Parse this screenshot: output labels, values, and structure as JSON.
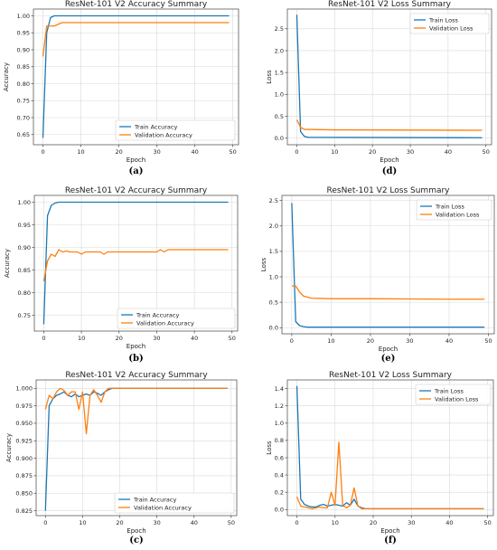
{
  "colors": {
    "train": "#1f77b4",
    "validation": "#ff7f0e",
    "grid": "#d9d9d9",
    "frame": "#444444"
  },
  "chart_data": [
    {
      "type": "line",
      "caption": "(a)",
      "title": "ResNet-101 V2 Accuracy Summary",
      "xlabel": "Epoch",
      "ylabel": "Accuracy",
      "xlim": [
        -2.5,
        51.5
      ],
      "ylim": [
        0.62,
        1.02
      ],
      "xticks": [
        0,
        10,
        20,
        30,
        40,
        50
      ],
      "xtick_labels": [
        "0",
        "10",
        "20",
        "30",
        "40",
        "50"
      ],
      "yticks": [
        0.65,
        0.7,
        0.75,
        0.8,
        0.85,
        0.9,
        0.95,
        1.0
      ],
      "ytick_labels": [
        "0.65",
        "0.70",
        "0.75",
        "0.80",
        "0.85",
        "0.90",
        "0.95",
        "1.00"
      ],
      "grid": true,
      "legend": "lower-right",
      "series": [
        {
          "name": "Train Accuracy",
          "color": "#1f77b4",
          "x": [
            0,
            1,
            2,
            3,
            4,
            49
          ],
          "y": [
            0.64,
            0.95,
            0.995,
            1.0,
            1.0,
            1.0
          ]
        },
        {
          "name": "Validation Accuracy",
          "color": "#ff7f0e",
          "x": [
            0,
            1,
            2,
            3,
            4,
            5,
            49
          ],
          "y": [
            0.88,
            0.97,
            0.97,
            0.97,
            0.975,
            0.98,
            0.98
          ]
        }
      ]
    },
    {
      "type": "line",
      "caption": "(d)",
      "title": "ResNet-101 V2 Loss Summary",
      "xlabel": "Epoch",
      "ylabel": "Loss",
      "xlim": [
        -2.5,
        51.5
      ],
      "ylim": [
        -0.15,
        2.95
      ],
      "xticks": [
        0,
        10,
        20,
        30,
        40,
        50
      ],
      "xtick_labels": [
        "0",
        "10",
        "20",
        "30",
        "40",
        "50"
      ],
      "yticks": [
        0.0,
        0.5,
        1.0,
        1.5,
        2.0,
        2.5
      ],
      "ytick_labels": [
        "0.0",
        "0.5",
        "1.0",
        "1.5",
        "2.0",
        "2.5"
      ],
      "grid": true,
      "legend": "upper-right",
      "series": [
        {
          "name": "Train Loss",
          "color": "#1f77b4",
          "x": [
            0,
            1,
            2,
            3,
            49
          ],
          "y": [
            2.82,
            0.15,
            0.04,
            0.02,
            0.01
          ]
        },
        {
          "name": "Validation Loss",
          "color": "#ff7f0e",
          "x": [
            0,
            1,
            2,
            3,
            10,
            49
          ],
          "y": [
            0.42,
            0.25,
            0.2,
            0.2,
            0.19,
            0.18
          ]
        }
      ]
    },
    {
      "type": "line",
      "caption": "(b)",
      "title": "ResNet-101 V2 Accuracy Summary",
      "xlabel": "Epoch",
      "ylabel": "Accuracy",
      "xlim": [
        -2.5,
        51.5
      ],
      "ylim": [
        0.715,
        1.015
      ],
      "xticks": [
        0,
        10,
        20,
        30,
        40,
        50
      ],
      "xtick_labels": [
        "0",
        "10",
        "20",
        "30",
        "40",
        "50"
      ],
      "yticks": [
        0.75,
        0.8,
        0.85,
        0.9,
        0.95,
        1.0
      ],
      "ytick_labels": [
        "0.75",
        "0.80",
        "0.85",
        "0.90",
        "0.95",
        "1.00"
      ],
      "grid": true,
      "legend": "lower-right",
      "series": [
        {
          "name": "Train Accuracy",
          "color": "#1f77b4",
          "x": [
            0,
            1,
            2,
            3,
            4,
            5,
            49
          ],
          "y": [
            0.73,
            0.97,
            0.993,
            0.998,
            1.0,
            1.0,
            1.0
          ]
        },
        {
          "name": "Validation Accuracy",
          "color": "#ff7f0e",
          "x": [
            0,
            1,
            2,
            3,
            4,
            5,
            6,
            7,
            8,
            9,
            10,
            11,
            12,
            13,
            14,
            15,
            16,
            17,
            18,
            20,
            25,
            30,
            31,
            32,
            33,
            34,
            35,
            40,
            45,
            49
          ],
          "y": [
            0.825,
            0.87,
            0.885,
            0.88,
            0.895,
            0.89,
            0.892,
            0.89,
            0.89,
            0.89,
            0.885,
            0.89,
            0.89,
            0.89,
            0.89,
            0.89,
            0.885,
            0.89,
            0.89,
            0.89,
            0.89,
            0.89,
            0.895,
            0.89,
            0.895,
            0.895,
            0.895,
            0.895,
            0.895,
            0.895
          ]
        }
      ]
    },
    {
      "type": "line",
      "caption": "(e)",
      "title": "ResNet-101 V2 Loss Summary",
      "xlabel": "Epoch",
      "ylabel": "Loss",
      "xlim": [
        -2.5,
        51.5
      ],
      "ylim": [
        -0.12,
        2.6
      ],
      "xticks": [
        0,
        10,
        20,
        30,
        40,
        50
      ],
      "xtick_labels": [
        "0",
        "10",
        "20",
        "30",
        "40",
        "50"
      ],
      "yticks": [
        0.0,
        0.5,
        1.0,
        1.5,
        2.0,
        2.5
      ],
      "ytick_labels": [
        "0.0",
        "0.5",
        "1.0",
        "1.5",
        "2.0",
        "2.5"
      ],
      "grid": true,
      "legend": "upper-right",
      "series": [
        {
          "name": "Train Loss",
          "color": "#1f77b4",
          "x": [
            0,
            1,
            2,
            3,
            4,
            49
          ],
          "y": [
            2.45,
            0.12,
            0.04,
            0.02,
            0.01,
            0.01
          ]
        },
        {
          "name": "Validation Loss",
          "color": "#ff7f0e",
          "x": [
            0,
            1,
            2,
            3,
            4,
            5,
            10,
            20,
            30,
            40,
            49
          ],
          "y": [
            0.82,
            0.82,
            0.7,
            0.62,
            0.6,
            0.58,
            0.57,
            0.57,
            0.565,
            0.56,
            0.56
          ]
        }
      ]
    },
    {
      "type": "line",
      "caption": "(c)",
      "title": "ResNet-101 V2 Accuracy Summary",
      "xlabel": "Epoch",
      "ylabel": "Accuracy",
      "xlim": [
        -2.5,
        51.5
      ],
      "ylim": [
        0.818,
        1.012
      ],
      "xticks": [
        0,
        10,
        20,
        30,
        40,
        50
      ],
      "xtick_labels": [
        "0",
        "10",
        "20",
        "30",
        "40",
        "50"
      ],
      "yticks": [
        0.825,
        0.85,
        0.875,
        0.9,
        0.925,
        0.95,
        0.975,
        1.0
      ],
      "ytick_labels": [
        "0.825",
        "0.850",
        "0.875",
        "0.900",
        "0.925",
        "0.950",
        "0.975",
        "1.000"
      ],
      "grid": true,
      "legend": "lower-right",
      "series": [
        {
          "name": "Train Accuracy",
          "color": "#1f77b4",
          "x": [
            0,
            1,
            2,
            3,
            4,
            5,
            6,
            7,
            8,
            9,
            10,
            11,
            12,
            13,
            14,
            15,
            16,
            17,
            18,
            19,
            20,
            49
          ],
          "y": [
            0.825,
            0.975,
            0.985,
            0.99,
            0.992,
            0.995,
            0.99,
            0.988,
            0.992,
            0.988,
            0.99,
            0.992,
            0.99,
            0.995,
            0.993,
            0.99,
            0.995,
            0.998,
            1.0,
            1.0,
            1.0,
            1.0
          ]
        },
        {
          "name": "Validation Accuracy",
          "color": "#ff7f0e",
          "x": [
            0,
            1,
            2,
            3,
            4,
            5,
            6,
            7,
            8,
            9,
            10,
            11,
            12,
            13,
            14,
            15,
            16,
            17,
            18,
            19,
            20,
            49
          ],
          "y": [
            0.97,
            0.99,
            0.985,
            0.995,
            1.0,
            0.997,
            0.99,
            0.995,
            0.995,
            0.97,
            0.995,
            0.935,
            0.99,
            0.998,
            0.99,
            0.98,
            0.995,
            1.0,
            1.0,
            1.0,
            1.0,
            1.0
          ]
        }
      ]
    },
    {
      "type": "line",
      "caption": "(f)",
      "title": "ResNet-101 V2 Loss Summary",
      "xlabel": "Epoch",
      "ylabel": "Loss",
      "xlim": [
        -2.5,
        51.5
      ],
      "ylim": [
        -0.07,
        1.5
      ],
      "xticks": [
        0,
        10,
        20,
        30,
        40,
        50
      ],
      "xtick_labels": [
        "0",
        "10",
        "20",
        "30",
        "40",
        "50"
      ],
      "yticks": [
        0.0,
        0.2,
        0.4,
        0.6,
        0.8,
        1.0,
        1.2,
        1.4
      ],
      "ytick_labels": [
        "0.0",
        "0.2",
        "0.4",
        "0.6",
        "0.8",
        "1.0",
        "1.2",
        "1.4"
      ],
      "grid": true,
      "legend": "upper-right",
      "series": [
        {
          "name": "Train Loss",
          "color": "#1f77b4",
          "x": [
            0,
            1,
            2,
            3,
            4,
            5,
            6,
            7,
            8,
            9,
            10,
            11,
            12,
            13,
            14,
            15,
            16,
            17,
            18,
            19,
            20,
            49
          ],
          "y": [
            1.43,
            0.12,
            0.06,
            0.04,
            0.03,
            0.03,
            0.05,
            0.06,
            0.04,
            0.05,
            0.06,
            0.05,
            0.04,
            0.08,
            0.05,
            0.12,
            0.04,
            0.02,
            0.01,
            0.01,
            0.01,
            0.01
          ]
        },
        {
          "name": "Validation Loss",
          "color": "#ff7f0e",
          "x": [
            0,
            1,
            2,
            3,
            4,
            5,
            6,
            7,
            8,
            9,
            10,
            11,
            12,
            13,
            14,
            15,
            16,
            17,
            18,
            19,
            20,
            49
          ],
          "y": [
            0.15,
            0.04,
            0.03,
            0.02,
            0.01,
            0.02,
            0.03,
            0.02,
            0.02,
            0.2,
            0.05,
            0.78,
            0.05,
            0.02,
            0.05,
            0.25,
            0.04,
            0.01,
            0.01,
            0.01,
            0.01,
            0.01
          ]
        }
      ]
    }
  ]
}
